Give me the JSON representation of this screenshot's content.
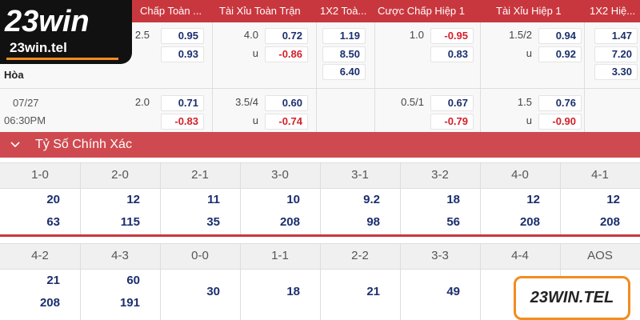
{
  "logo": {
    "brand": "23win",
    "domain": "23win.tel"
  },
  "odds": {
    "headers": [
      "Chấp Toàn ...",
      "Tài Xỉu Toàn Trận",
      "1X2 Toà...",
      "Cược Chấp Hiệp 1",
      "Tài Xỉu Hiệp 1",
      "1X2 Hiệ..."
    ],
    "line1": {
      "hdp": {
        "line": "2.5",
        "home": "0.95",
        "away": "0.93"
      },
      "ou": {
        "line": "4.0",
        "over": "0.72",
        "under_label": "u",
        "under": "-0.86"
      },
      "x12": {
        "home": "1.19",
        "away": "8.50",
        "draw": "6.40"
      },
      "hdp_h1": {
        "line": "1.0",
        "home": "-0.95",
        "away": "0.83"
      },
      "ou_h1": {
        "line": "1.5/2",
        "over": "0.94",
        "under_label": "u",
        "under": "0.92"
      },
      "x12_h1": {
        "home": "1.47",
        "away": "7.20",
        "draw": "3.30"
      }
    },
    "draw_label": "Hòa",
    "line2": {
      "date": "07/27",
      "time": "06:30PM",
      "hdp": {
        "line": "2.0",
        "home": "0.71",
        "away": "-0.83"
      },
      "ou": {
        "line": "3.5/4",
        "over": "0.60",
        "under_label": "u",
        "under": "-0.74"
      },
      "hdp_h1": {
        "line": "0.5/1",
        "home": "0.67",
        "away": "-0.79"
      },
      "ou_h1": {
        "line": "1.5",
        "over": "0.76",
        "under_label": "u",
        "under": "-0.90"
      }
    }
  },
  "correct_score": {
    "title": "Tỷ Số Chính Xác",
    "rows": [
      [
        {
          "label": "1-0",
          "values": [
            "20",
            "63"
          ]
        },
        {
          "label": "2-0",
          "values": [
            "12",
            "115"
          ]
        },
        {
          "label": "2-1",
          "values": [
            "11",
            "35"
          ]
        },
        {
          "label": "3-0",
          "values": [
            "10",
            "208"
          ]
        },
        {
          "label": "3-1",
          "values": [
            "9.2",
            "98"
          ]
        },
        {
          "label": "3-2",
          "values": [
            "18",
            "56"
          ]
        },
        {
          "label": "4-0",
          "values": [
            "12",
            "208"
          ]
        },
        {
          "label": "4-1",
          "values": [
            "12",
            "208"
          ]
        }
      ],
      [
        {
          "label": "4-2",
          "values": [
            "21",
            "208"
          ]
        },
        {
          "label": "4-3",
          "values": [
            "60",
            "191"
          ]
        },
        {
          "label": "0-0",
          "values": [
            "30"
          ]
        },
        {
          "label": "1-1",
          "values": [
            "18"
          ]
        },
        {
          "label": "2-2",
          "values": [
            "21"
          ]
        },
        {
          "label": "3-3",
          "values": [
            "49"
          ]
        },
        {
          "label": "4-4",
          "values": []
        },
        {
          "label": "AOS",
          "values": []
        }
      ]
    ]
  },
  "watermark": "23WIN.TEL"
}
